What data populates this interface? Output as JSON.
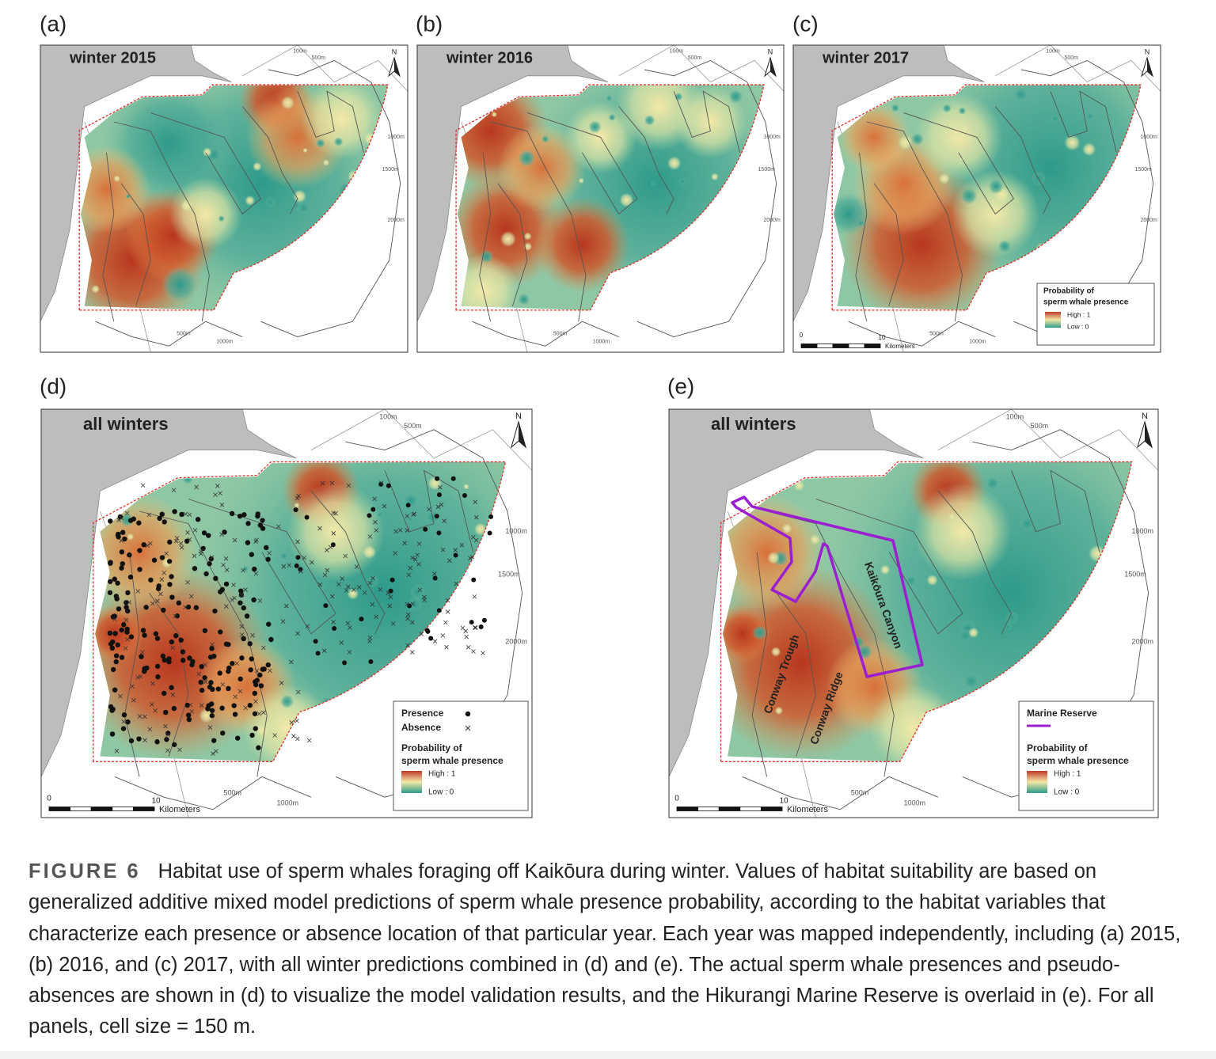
{
  "panels": [
    {
      "letter": "(a)",
      "title": "winter 2015",
      "north": "N",
      "depth_labels": [
        "100m",
        "500m",
        "1000m",
        "1500m",
        "2000m",
        "500m",
        "1000m"
      ]
    },
    {
      "letter": "(b)",
      "title": "winter 2016",
      "north": "N",
      "depth_labels": [
        "100m",
        "500m",
        "1000m",
        "1500m",
        "2000m",
        "500m",
        "1000m"
      ]
    },
    {
      "letter": "(c)",
      "title": "winter 2017",
      "north": "N",
      "depth_labels": [
        "100m",
        "500m",
        "1000m",
        "1500m",
        "2000m",
        "500m",
        "1000m"
      ],
      "scale": {
        "zero": "0",
        "ten": "10",
        "unit": "Kilometers"
      },
      "legend": {
        "title": [
          "Probability of",
          "sperm whale presence"
        ],
        "high": "High : 1",
        "low": "Low : 0"
      }
    },
    {
      "letter": "(d)",
      "title": "all winters",
      "north": "N",
      "depth_labels": [
        "100m",
        "500m",
        "1000m",
        "1500m",
        "2000m",
        "500m",
        "1000m"
      ],
      "scale": {
        "zero": "0",
        "ten": "10",
        "unit": "Kilometers"
      },
      "legend": {
        "presence": "Presence",
        "absence": "Absence",
        "title": [
          "Probability of",
          "sperm whale presence"
        ],
        "high": "High : 1",
        "low": "Low : 0"
      }
    },
    {
      "letter": "(e)",
      "title": "all winters",
      "north": "N",
      "depth_labels": [
        "100m",
        "500m",
        "1000m",
        "1500m",
        "2000m",
        "500m",
        "1000m"
      ],
      "scale": {
        "zero": "0",
        "ten": "10",
        "unit": "Kilometers"
      },
      "features": [
        "Kaikōura Canyon",
        "Conway Trough",
        "Conway Ridge"
      ],
      "legend": {
        "reserve": "Marine Reserve",
        "title": [
          "Probability of",
          "sperm whale presence"
        ],
        "high": "High : 1",
        "low": "Low : 0"
      }
    }
  ],
  "caption": {
    "label": "FIGURE 6",
    "text": "Habitat use of sperm whales foraging off Kaikōura during winter. Values of habitat suitability are based on generalized additive mixed model predictions of sperm whale presence probability, according to the habitat variables that characterize each presence or absence location of that particular year. Each year was mapped independently, including (a) 2015, (b) 2016, and (c) 2017, with all winter predictions combined in (d) and (e). The actual sperm whale presences and pseudo-absences are shown in (d) to visualize the model validation results, and the Hikurangi Marine Reserve is overlaid in (e). For all panels, cell size = 150 m."
  }
}
